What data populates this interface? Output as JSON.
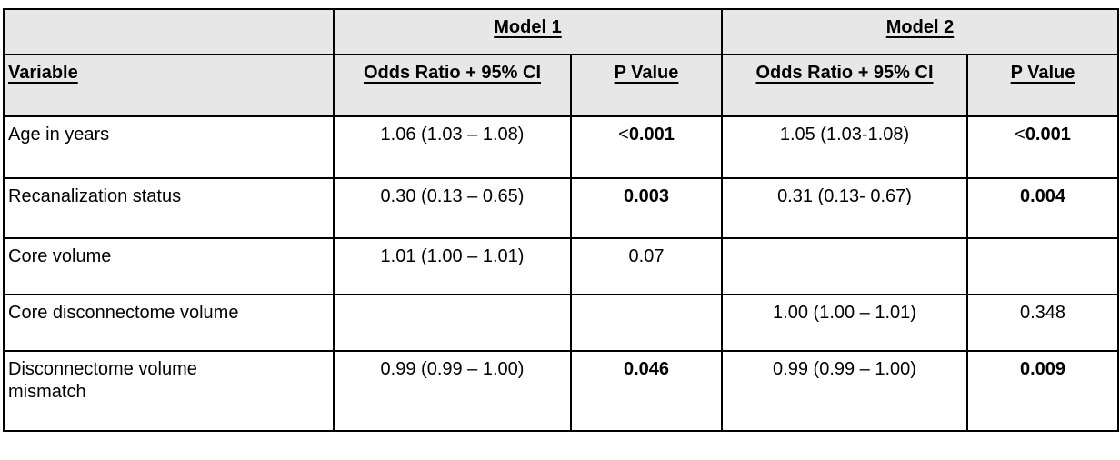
{
  "table": {
    "header_bg": "#e7e7e7",
    "border_color": "#000000",
    "text_color": "#000000",
    "corner_label": "",
    "group_headers": [
      {
        "label": "Model 1"
      },
      {
        "label": "Model 2"
      }
    ],
    "column_headers": {
      "variable": "Variable",
      "model1_or": "Odds Ratio + 95% CI",
      "model1_p": "P Value",
      "model2_or": "Odds Ratio + 95% CI",
      "model2_p": "P Value"
    },
    "rows": [
      {
        "variable": "Age in years",
        "m1_or": "1.06 (1.03 – 1.08)",
        "m1_p": "<0.001",
        "m1_p_bold": true,
        "m2_or": "1.05 (1.03-1.08)",
        "m2_p": "<0.001",
        "m2_p_bold": true
      },
      {
        "variable": "Recanalization status",
        "m1_or": "0.30 (0.13 – 0.65)",
        "m1_p": "0.003",
        "m1_p_bold": true,
        "m2_or": "0.31 (0.13- 0.67)",
        "m2_p": "0.004",
        "m2_p_bold": true
      },
      {
        "variable": "Core volume",
        "m1_or": "1.01 (1.00 – 1.01)",
        "m1_p": "0.07",
        "m1_p_bold": false,
        "m2_or": "",
        "m2_p": "",
        "m2_p_bold": false
      },
      {
        "variable": "Core disconnectome volume",
        "m1_or": "",
        "m1_p": "",
        "m1_p_bold": false,
        "m2_or": "1.00 (1.00 – 1.01)",
        "m2_p": "0.348",
        "m2_p_bold": false
      },
      {
        "variable": "Disconnectome volume\nmismatch",
        "m1_or": "0.99 (0.99 – 1.00)",
        "m1_p": "0.046",
        "m1_p_bold": true,
        "m2_or": "0.99 (0.99 – 1.00)",
        "m2_p": "0.009",
        "m2_p_bold": true
      }
    ]
  }
}
